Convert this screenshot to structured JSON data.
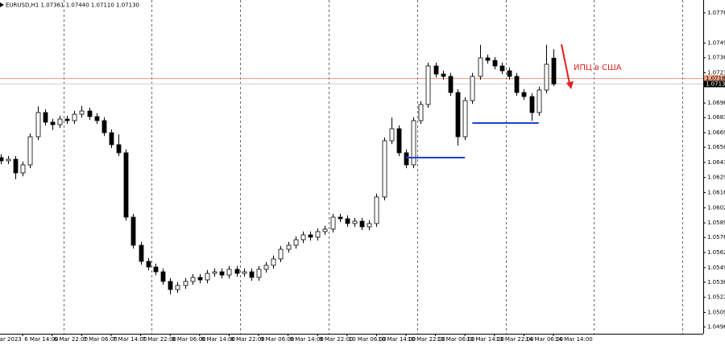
{
  "chart_data": {
    "type": "candlestick",
    "title": "EURUSD,H1  1.07361 1.07440 1.07110 1.07130",
    "annotation": "ИПЦ в США",
    "categories": [
      "Mar 2023",
      null,
      null,
      null,
      "6 Mar 14:00",
      null,
      null,
      null,
      "6 Mar 22:00",
      null,
      null,
      null,
      "7 Mar 06:00",
      null,
      null,
      null,
      "7 Mar 14:00",
      null,
      null,
      null,
      "7 Mar 22:00",
      null,
      null,
      null,
      "8 Mar 06:00",
      null,
      null,
      null,
      "8 Mar 14:00",
      null,
      null,
      null,
      "8 Mar 22:00",
      null,
      null,
      null,
      "9 Mar 06:00",
      null,
      null,
      null,
      "9 Mar 14:00",
      null,
      null,
      null,
      "9 Mar 22:00",
      null,
      null,
      null,
      "10 Mar 06:00",
      null,
      null,
      null,
      "10 Mar 14:00",
      null,
      null,
      null,
      "10 Mar 22:00",
      null,
      null,
      null,
      "13 Mar 06:00",
      null,
      null,
      null,
      "13 Mar 14:00",
      null,
      null,
      null,
      "13 Mar 22:00",
      null,
      null,
      null,
      "14 Mar 06:00",
      null,
      null,
      null,
      "14 Mar 14:00"
    ],
    "open": [
      1.0645,
      1.06473,
      1.06444,
      1.06458,
      1.06336,
      1.06408,
      1.06659,
      1.06875,
      1.06789,
      1.06767,
      1.06817,
      1.06803,
      1.0686,
      1.06889,
      1.06839,
      1.06803,
      1.06695,
      1.06588,
      1.06516,
      1.05941,
      1.0569,
      1.05546,
      1.05496,
      1.05453,
      1.05367,
      1.05295,
      1.05331,
      1.05367,
      1.05403,
      1.05381,
      1.05439,
      1.05453,
      1.05424,
      1.05475,
      1.05439,
      1.05453,
      1.05403,
      1.05475,
      1.05511,
      1.05568,
      1.05654,
      1.0569,
      1.0574,
      1.05783,
      1.05762,
      1.05812,
      1.05834,
      1.05941,
      1.05927,
      1.05884,
      1.05905,
      1.05855,
      1.05884,
      1.06121,
      1.06623,
      1.06731,
      1.06516,
      1.06408,
      1.06803,
      1.06947,
      1.07291,
      1.07219,
      1.07198,
      1.07054,
      1.06659,
      1.06982,
      1.07198,
      1.07363,
      1.07341,
      1.07291,
      1.07248,
      1.07198,
      1.07054,
      1.07018,
      1.06875,
      1.07076,
      1.07361
    ],
    "high": [
      1.06503,
      1.06503,
      1.06488,
      1.06488,
      1.06438,
      1.06689,
      1.0693,
      1.06905,
      1.06819,
      1.06847,
      1.06847,
      1.0689,
      1.06935,
      1.06919,
      1.06869,
      1.06833,
      1.06725,
      1.0668,
      1.06546,
      1.05971,
      1.0572,
      1.05576,
      1.05526,
      1.05483,
      1.05397,
      1.05361,
      1.05397,
      1.05433,
      1.05433,
      1.05469,
      1.05483,
      1.05483,
      1.05505,
      1.05505,
      1.05483,
      1.05483,
      1.05505,
      1.05541,
      1.05598,
      1.05684,
      1.0572,
      1.0577,
      1.05813,
      1.05813,
      1.05842,
      1.05864,
      1.05971,
      1.05971,
      1.05957,
      1.05935,
      1.05935,
      1.05914,
      1.06151,
      1.06653,
      1.0683,
      1.06761,
      1.06546,
      1.06833,
      1.06977,
      1.07321,
      1.07321,
      1.07249,
      1.07228,
      1.07084,
      1.07012,
      1.07228,
      1.0748,
      1.07393,
      1.07371,
      1.07321,
      1.07278,
      1.07228,
      1.07084,
      1.07048,
      1.07106,
      1.0748,
      1.0744
    ],
    "low": [
      1.0642,
      1.06414,
      1.06414,
      1.0628,
      1.06306,
      1.06378,
      1.06629,
      1.06759,
      1.0672,
      1.06737,
      1.06773,
      1.06773,
      1.0683,
      1.06809,
      1.06773,
      1.06665,
      1.06558,
      1.06486,
      1.05911,
      1.0566,
      1.05516,
      1.05466,
      1.05423,
      1.05337,
      1.0525,
      1.05265,
      1.05301,
      1.05337,
      1.05351,
      1.05351,
      1.05409,
      1.05394,
      1.05394,
      1.05409,
      1.05409,
      1.05373,
      1.05373,
      1.05445,
      1.05481,
      1.05538,
      1.05624,
      1.0566,
      1.0571,
      1.05732,
      1.05732,
      1.05782,
      1.05804,
      1.05897,
      1.05854,
      1.05854,
      1.05825,
      1.05825,
      1.05854,
      1.06091,
      1.06593,
      1.06486,
      1.06378,
      1.06378,
      1.06773,
      1.06917,
      1.07189,
      1.07168,
      1.07024,
      1.0658,
      1.06629,
      1.06952,
      1.07168,
      1.07311,
      1.07261,
      1.07218,
      1.07168,
      1.07024,
      1.06988,
      1.068,
      1.06845,
      1.07046,
      1.0711
    ],
    "close": [
      1.06473,
      1.06444,
      1.06458,
      1.06336,
      1.06408,
      1.06659,
      1.06875,
      1.06789,
      1.06767,
      1.06817,
      1.06803,
      1.0686,
      1.06889,
      1.06839,
      1.06803,
      1.06695,
      1.06588,
      1.06516,
      1.05941,
      1.0569,
      1.05546,
      1.05496,
      1.05453,
      1.05367,
      1.05295,
      1.05331,
      1.05367,
      1.05403,
      1.05381,
      1.05439,
      1.05453,
      1.05424,
      1.05475,
      1.05439,
      1.05453,
      1.05403,
      1.05475,
      1.05511,
      1.05568,
      1.05654,
      1.0569,
      1.0574,
      1.05783,
      1.05762,
      1.05812,
      1.05834,
      1.05941,
      1.05927,
      1.05884,
      1.05905,
      1.05855,
      1.05884,
      1.06121,
      1.06623,
      1.06731,
      1.06516,
      1.06408,
      1.06803,
      1.06947,
      1.07291,
      1.07219,
      1.07198,
      1.07054,
      1.06659,
      1.06982,
      1.07198,
      1.07363,
      1.07341,
      1.07291,
      1.07248,
      1.07198,
      1.07054,
      1.07018,
      1.06875,
      1.07076,
      1.07306,
      1.0713
    ],
    "levels": [
      {
        "value": 1.06473,
        "start": 56,
        "end": 64,
        "color": "#1f3fd6"
      },
      {
        "value": 1.06781,
        "start": 65,
        "end": 74,
        "color": "#1f3fd6"
      }
    ],
    "price_lines": [
      {
        "value": 1.0718,
        "label": "1.07180",
        "color": "#f0a080"
      },
      {
        "value": 1.0713,
        "label": "1.07130",
        "color": "#d0d0d0"
      }
    ],
    "ylim": [
      1.049,
      1.0788
    ],
    "yticks": [
      1.07765,
      1.07495,
      1.07365,
      {
        "value": 1.0723,
        "label": "1.07230"
      },
      {
        "value": 1.0696,
        "label": "1.06960"
      },
      {
        "value": 1.0683,
        "label": "1.06830"
      },
      1.06695,
      1.06565,
      {
        "value": 1.0643,
        "label": "1.06430"
      },
      1.06295,
      {
        "value": 1.0616,
        "label": "1.06160"
      },
      1.06025,
      {
        "value": 1.0589,
        "label": "1.05890"
      },
      {
        "value": 1.0576,
        "label": "1.05760"
      },
      1.05625,
      {
        "value": 1.0549,
        "label": "1.05490"
      },
      {
        "value": 1.0536,
        "label": "1.05360"
      },
      1.05225,
      {
        "value": 1.0509,
        "label": "1.05090"
      },
      {
        "value": 1.0496,
        "label": "1.04960"
      }
    ],
    "up_color": "#ffffff",
    "down_color": "#000000",
    "grid": false
  }
}
